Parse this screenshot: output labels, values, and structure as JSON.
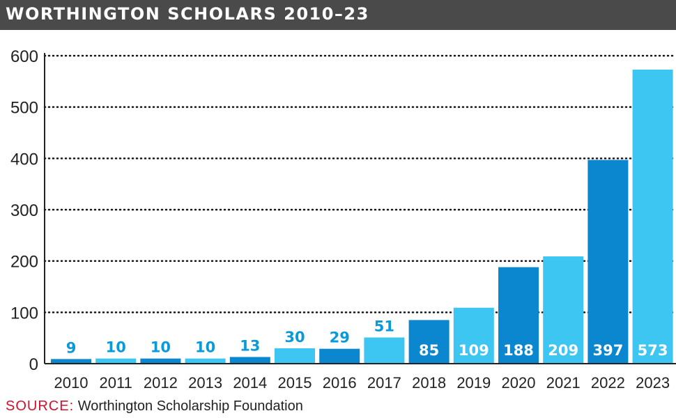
{
  "title": "WORTHINGTON SCHOLARS 2010–23",
  "source": {
    "label": "SOURCE:",
    "text": "Worthington Scholarship Foundation"
  },
  "colors": {
    "dark_bar": "#0b87cf",
    "light_bar": "#3ec6f3",
    "label_outside": "#0b9ad9",
    "label_inside": "#ffffff",
    "title_bg": "#4a4a4a",
    "source_label": "#d0112b"
  },
  "chart_data": {
    "type": "bar",
    "categories": [
      "2010",
      "2011",
      "2012",
      "2013",
      "2014",
      "2015",
      "2016",
      "2017",
      "2018",
      "2019",
      "2020",
      "2021",
      "2022",
      "2023"
    ],
    "values": [
      9,
      10,
      10,
      10,
      13,
      30,
      29,
      51,
      85,
      109,
      188,
      209,
      397,
      573
    ],
    "bar_shades": [
      "dark",
      "light",
      "dark",
      "light",
      "dark",
      "light",
      "dark",
      "light",
      "dark",
      "light",
      "dark",
      "light",
      "dark",
      "light"
    ],
    "y_ticks": [
      "0",
      "100",
      "200",
      "300",
      "400",
      "500",
      "600"
    ],
    "ylim": [
      0,
      600
    ],
    "grid": "dotted horizontal"
  }
}
